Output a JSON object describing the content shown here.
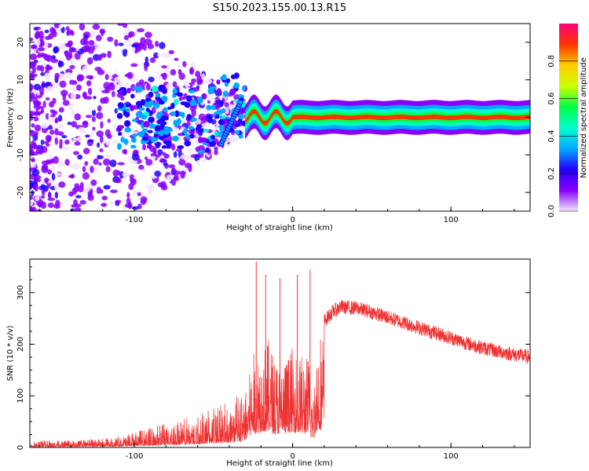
{
  "title": "S150.2023.155.00.13.R15",
  "chart_data": [
    {
      "type": "heatmap",
      "xlabel": "Height of straight line (km)",
      "ylabel": "Frequency (Hz)",
      "xlim": [
        -166,
        150
      ],
      "ylim": [
        -25,
        25
      ],
      "xticks": [
        -100,
        0,
        100
      ],
      "yticks": [
        -20,
        -10,
        0,
        10,
        20
      ],
      "colorbar": {
        "label": "Normalized spectral amplitude",
        "range": [
          0.0,
          1.0
        ],
        "ticks": [
          0.0,
          0.2,
          0.4,
          0.6,
          0.8
        ],
        "colors": [
          "#f2e6ff",
          "#8800ff",
          "#2200ff",
          "#00aaff",
          "#00ffcc",
          "#00ff44",
          "#ccff00",
          "#ffcc00",
          "#ff3300",
          "#ff0077"
        ]
      },
      "features": [
        {
          "name": "noise-cloud",
          "x_range": [
            -166,
            -30
          ],
          "y_range": [
            -25,
            25
          ],
          "amplitude": 0.1
        },
        {
          "name": "carrier-line",
          "x_range": [
            -30,
            150
          ],
          "y": 0,
          "amplitude": 0.9
        }
      ]
    },
    {
      "type": "line",
      "xlabel": "Height of straight line (km)",
      "ylabel": "SNR (10 * v/v)",
      "xlim": [
        -166,
        150
      ],
      "ylim": [
        0,
        365
      ],
      "xticks": [
        -100,
        0,
        100
      ],
      "yticks": [
        0,
        100,
        200,
        300
      ],
      "color": "#ee3333",
      "envelope": {
        "x": [
          -166,
          -140,
          -120,
          -110,
          -100,
          -90,
          -80,
          -70,
          -60,
          -50,
          -40,
          -32,
          -25,
          -20,
          -15,
          -10,
          -5,
          0,
          5,
          10,
          13,
          15,
          20,
          25,
          30,
          40,
          50,
          60,
          70,
          80,
          90,
          100,
          110,
          120,
          130,
          140,
          150
        ],
        "y": [
          10,
          10,
          12,
          15,
          20,
          28,
          32,
          38,
          45,
          55,
          65,
          75,
          180,
          200,
          210,
          175,
          175,
          195,
          185,
          180,
          100,
          215,
          245,
          262,
          272,
          270,
          262,
          252,
          242,
          232,
          222,
          212,
          202,
          193,
          186,
          180,
          175
        ]
      },
      "spikes": [
        {
          "x": -23,
          "y": 360
        },
        {
          "x": -17,
          "y": 335
        },
        {
          "x": -8,
          "y": 328
        },
        {
          "x": 3,
          "y": 335
        },
        {
          "x": 11,
          "y": 345
        },
        {
          "x": 12.5,
          "y": 42
        },
        {
          "x": -19,
          "y": 40
        },
        {
          "x": -1,
          "y": 50
        }
      ]
    }
  ]
}
